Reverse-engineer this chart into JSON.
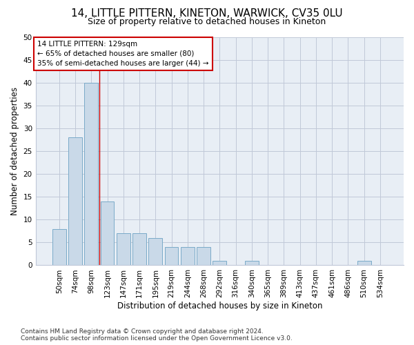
{
  "title": "14, LITTLE PITTERN, KINETON, WARWICK, CV35 0LU",
  "subtitle": "Size of property relative to detached houses in Kineton",
  "xlabel": "Distribution of detached houses by size in Kineton",
  "ylabel": "Number of detached properties",
  "bin_labels": [
    "50sqm",
    "74sqm",
    "98sqm",
    "123sqm",
    "147sqm",
    "171sqm",
    "195sqm",
    "219sqm",
    "244sqm",
    "268sqm",
    "292sqm",
    "316sqm",
    "340sqm",
    "365sqm",
    "389sqm",
    "413sqm",
    "437sqm",
    "461sqm",
    "486sqm",
    "510sqm",
    "534sqm"
  ],
  "bar_values": [
    8,
    28,
    40,
    14,
    7,
    7,
    6,
    4,
    4,
    4,
    1,
    0,
    1,
    0,
    0,
    0,
    0,
    0,
    0,
    1,
    0
  ],
  "bar_color": "#c9d9e8",
  "bar_edgecolor": "#7aaac8",
  "vline_color": "#cc0000",
  "ylim": [
    0,
    50
  ],
  "yticks": [
    0,
    5,
    10,
    15,
    20,
    25,
    30,
    35,
    40,
    45,
    50
  ],
  "annotation_lines": [
    "14 LITTLE PITTERN: 129sqm",
    "← 65% of detached houses are smaller (80)",
    "35% of semi-detached houses are larger (44) →"
  ],
  "annotation_box_edgecolor": "#cc0000",
  "footer_line1": "Contains HM Land Registry data © Crown copyright and database right 2024.",
  "footer_line2": "Contains public sector information licensed under the Open Government Licence v3.0.",
  "background_color": "#ffffff",
  "plot_bg_color": "#e8eef5",
  "grid_color": "#c0c8d8",
  "title_fontsize": 11,
  "subtitle_fontsize": 9,
  "axis_label_fontsize": 8.5,
  "tick_fontsize": 7.5,
  "footer_fontsize": 6.5,
  "annotation_fontsize": 7.5
}
